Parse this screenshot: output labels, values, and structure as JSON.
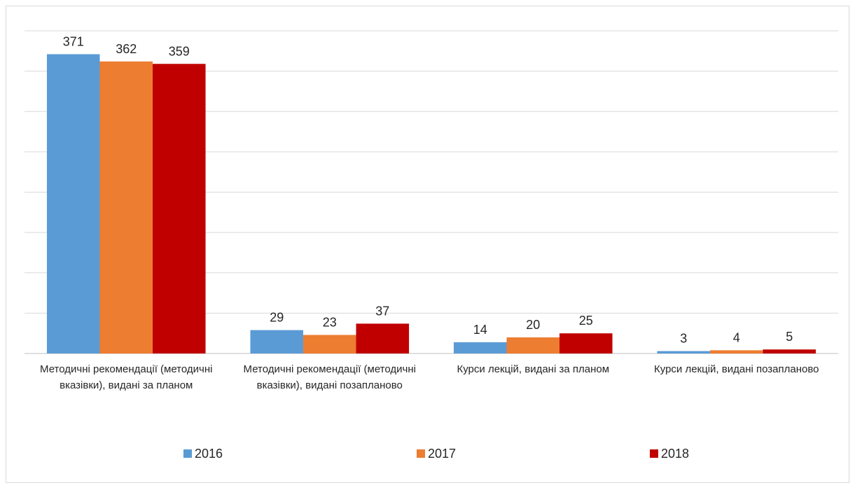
{
  "chart_data": {
    "type": "bar",
    "categories": [
      "Методичні рекомендації (методичні вказівки), видані за планом",
      "Методичні рекомендації (методичні вказівки), видані позапланово",
      "Курси лекцій, видані за планом",
      "Курси лекцій, видані позапланово"
    ],
    "series": [
      {
        "name": "2016",
        "color": "#5b9bd5",
        "values": [
          371,
          29,
          14,
          3
        ]
      },
      {
        "name": "2017",
        "color": "#ed7d31",
        "values": [
          362,
          23,
          20,
          4
        ]
      },
      {
        "name": "2018",
        "color": "#c00000",
        "values": [
          359,
          37,
          25,
          5
        ]
      }
    ],
    "ylim": [
      0,
      400
    ],
    "yticks": [
      0,
      50,
      100,
      150,
      200,
      250,
      300,
      350,
      400
    ],
    "grid": true,
    "legend": "bottom"
  }
}
